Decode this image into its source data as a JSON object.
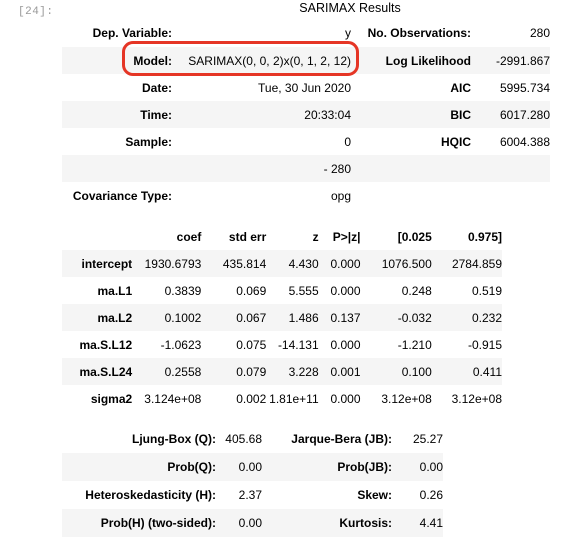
{
  "cell": {
    "prompt": "[24]:"
  },
  "summary": {
    "title": "SARIMAX Results",
    "info_rows": [
      {
        "l1": "Dep. Variable:",
        "v1": "y",
        "l2": "No. Observations:",
        "v2": "280"
      },
      {
        "l1": "Model:",
        "v1": "SARIMAX(0, 0, 2)x(0, 1, 2, 12)",
        "l2": "Log Likelihood",
        "v2": "-2991.867"
      },
      {
        "l1": "Date:",
        "v1": "Tue, 30 Jun 2020",
        "l2": "AIC",
        "v2": "5995.734"
      },
      {
        "l1": "Time:",
        "v1": "20:33:04",
        "l2": "BIC",
        "v2": "6017.280"
      },
      {
        "l1": "Sample:",
        "v1": "0",
        "l2": "HQIC",
        "v2": "6004.388"
      },
      {
        "l1": "",
        "v1": "- 280",
        "l2": "",
        "v2": ""
      },
      {
        "l1": "Covariance Type:",
        "v1": "opg",
        "l2": "",
        "v2": ""
      }
    ],
    "coef_headers": [
      "",
      "coef",
      "std err",
      "z",
      "P>|z|",
      "[0.025",
      "0.975]"
    ],
    "coef_rows": [
      [
        "intercept",
        "1930.6793",
        "435.814",
        "4.430",
        "0.000",
        "1076.500",
        "2784.859"
      ],
      [
        "ma.L1",
        "0.3839",
        "0.069",
        "5.555",
        "0.000",
        "0.248",
        "0.519"
      ],
      [
        "ma.L2",
        "0.1002",
        "0.067",
        "1.486",
        "0.137",
        "-0.032",
        "0.232"
      ],
      [
        "ma.S.L12",
        "-1.0623",
        "0.075",
        "-14.131",
        "0.000",
        "-1.210",
        "-0.915"
      ],
      [
        "ma.S.L24",
        "0.2558",
        "0.079",
        "3.228",
        "0.001",
        "0.100",
        "0.411"
      ],
      [
        "sigma2",
        "3.124e+08",
        "0.002",
        "1.81e+11",
        "0.000",
        "3.12e+08",
        "3.12e+08"
      ]
    ],
    "diag_rows": [
      {
        "l1": "Ljung-Box (Q):",
        "v1": "405.68",
        "l2": "Jarque-Bera (JB):",
        "v2": "25.27"
      },
      {
        "l1": "Prob(Q):",
        "v1": "0.00",
        "l2": "Prob(JB):",
        "v2": "0.00"
      },
      {
        "l1": "Heteroskedasticity (H):",
        "v1": "2.37",
        "l2": "Skew:",
        "v2": "0.26"
      },
      {
        "l1": "Prob(H) (two-sided):",
        "v1": "0.00",
        "l2": "Kurtosis:",
        "v2": "4.41"
      }
    ]
  },
  "highlight": {
    "color": "#e53525"
  }
}
